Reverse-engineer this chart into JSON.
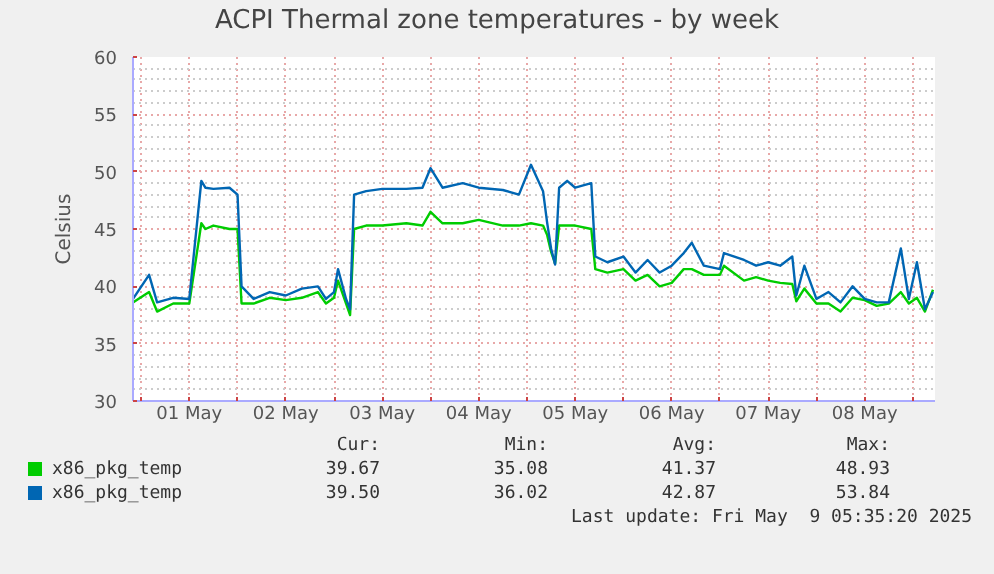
{
  "chart_data": {
    "type": "line",
    "title": "ACPI Thermal zone temperatures - by week",
    "ylabel": "Celsius",
    "x": [
      "2025-04-30T22:00",
      "2025-05-01T02:00",
      "2025-05-01T04:00",
      "2025-05-01T08:00",
      "2025-05-01T12:00",
      "2025-05-01T15:00",
      "2025-05-01T16:00",
      "2025-05-01T18:00",
      "2025-05-01T22:00",
      "2025-05-02T00:00",
      "2025-05-02T01:00",
      "2025-05-02T04:00",
      "2025-05-02T08:00",
      "2025-05-02T12:00",
      "2025-05-02T16:00",
      "2025-05-02T20:00",
      "2025-05-02T22:00",
      "2025-05-03T00:00",
      "2025-05-03T01:00",
      "2025-05-03T03:00",
      "2025-05-03T04:00",
      "2025-05-03T05:00",
      "2025-05-03T08:00",
      "2025-05-03T12:00",
      "2025-05-03T18:00",
      "2025-05-03T22:00",
      "2025-05-04T00:00",
      "2025-05-04T03:00",
      "2025-05-04T08:00",
      "2025-05-04T12:00",
      "2025-05-04T18:00",
      "2025-05-04T22:00",
      "2025-05-05T01:00",
      "2025-05-05T04:00",
      "2025-05-05T05:00",
      "2025-05-05T06:00",
      "2025-05-05T07:00",
      "2025-05-05T08:00",
      "2025-05-05T10:00",
      "2025-05-05T12:00",
      "2025-05-05T16:00",
      "2025-05-05T17:00",
      "2025-05-05T20:00",
      "2025-05-06T00:00",
      "2025-05-06T03:00",
      "2025-05-06T06:00",
      "2025-05-06T09:00",
      "2025-05-06T12:00",
      "2025-05-06T15:00",
      "2025-05-06T17:00",
      "2025-05-06T20:00",
      "2025-05-07T00:00",
      "2025-05-07T01:00",
      "2025-05-07T06:00",
      "2025-05-07T09:00",
      "2025-05-07T12:00",
      "2025-05-07T15:00",
      "2025-05-07T18:00",
      "2025-05-07T19:00",
      "2025-05-07T21:00",
      "2025-05-08T00:00",
      "2025-05-08T03:00",
      "2025-05-08T06:00",
      "2025-05-08T09:00",
      "2025-05-08T12:00",
      "2025-05-08T15:00",
      "2025-05-08T18:00",
      "2025-05-08T21:00",
      "2025-05-08T23:00",
      "2025-05-09T01:00",
      "2025-05-09T03:00",
      "2025-05-09T05:00"
    ],
    "series": [
      {
        "name": "x86_pkg_temp",
        "color": "#00cc00",
        "values": [
          38.6,
          39.5,
          37.8,
          38.5,
          38.5,
          45.5,
          45.0,
          45.3,
          45.0,
          45.0,
          38.5,
          38.5,
          39,
          38.8,
          39,
          39.5,
          38.5,
          39,
          40.5,
          38.5,
          37.5,
          45,
          45.3,
          45.3,
          45.5,
          45.3,
          46.5,
          45.5,
          45.5,
          45.8,
          45.3,
          45.3,
          45.5,
          45.3,
          44.5,
          43,
          42,
          45.3,
          45.3,
          45.3,
          45,
          41.5,
          41.2,
          41.5,
          40.5,
          41,
          40,
          40.3,
          41.5,
          41.5,
          41,
          41,
          41.8,
          40.5,
          40.8,
          40.5,
          40.3,
          40.2,
          38.7,
          39.8,
          38.5,
          38.5,
          37.8,
          39,
          38.8,
          38.3,
          38.5,
          39.5,
          38.5,
          39,
          37.8,
          39.7
        ]
      },
      {
        "name": "x86_pkg_temp",
        "color": "#0066b3",
        "values": [
          38.9,
          41,
          38.6,
          39,
          38.9,
          49.2,
          48.6,
          48.5,
          48.6,
          48,
          40,
          38.9,
          39.5,
          39.2,
          39.8,
          40,
          38.9,
          39.5,
          41.5,
          38.9,
          38,
          48,
          48.3,
          48.5,
          48.5,
          48.6,
          50.3,
          48.6,
          49,
          48.6,
          48.4,
          48,
          50.6,
          48.3,
          45.6,
          43.3,
          41.9,
          48.6,
          49.2,
          48.6,
          49,
          42.6,
          42.1,
          42.6,
          41.2,
          42.3,
          41.2,
          41.8,
          42.9,
          43.8,
          41.8,
          41.5,
          42.9,
          42.3,
          41.8,
          42.1,
          41.8,
          42.6,
          39.2,
          41.8,
          38.9,
          39.5,
          38.6,
          40,
          38.9,
          38.6,
          38.6,
          43.3,
          38.9,
          42.1,
          38,
          39.5
        ]
      }
    ],
    "xlim": [
      "2025-04-30T22:00",
      "2025-05-09T05:30"
    ],
    "xticks": [
      {
        "value": "2025-05-01T00:00",
        "label": null
      },
      {
        "value": "2025-05-01T12:00",
        "label": "01 May"
      },
      {
        "value": "2025-05-02T00:00",
        "label": null
      },
      {
        "value": "2025-05-02T12:00",
        "label": "02 May"
      },
      {
        "value": "2025-05-03T00:00",
        "label": null
      },
      {
        "value": "2025-05-03T12:00",
        "label": "03 May"
      },
      {
        "value": "2025-05-04T00:00",
        "label": null
      },
      {
        "value": "2025-05-04T12:00",
        "label": "04 May"
      },
      {
        "value": "2025-05-05T00:00",
        "label": null
      },
      {
        "value": "2025-05-05T12:00",
        "label": "05 May"
      },
      {
        "value": "2025-05-06T00:00",
        "label": null
      },
      {
        "value": "2025-05-06T12:00",
        "label": "06 May"
      },
      {
        "value": "2025-05-07T00:00",
        "label": null
      },
      {
        "value": "2025-05-07T12:00",
        "label": "07 May"
      },
      {
        "value": "2025-05-08T00:00",
        "label": null
      },
      {
        "value": "2025-05-08T12:00",
        "label": "08 May"
      },
      {
        "value": "2025-05-09T00:00",
        "label": null
      }
    ],
    "ylim": [
      30,
      60
    ],
    "yticks": [
      30,
      35,
      40,
      45,
      50,
      55,
      60
    ],
    "grid": true,
    "legend": "bottom left",
    "marker": "none",
    "line_style": "solid",
    "annotations": [
      "Cur:",
      "Min:",
      "Avg:",
      "Max:",
      "39.67",
      "35.08",
      "41.37",
      "48.93",
      "39.50",
      "36.02",
      "42.87",
      "53.84",
      "Last update: Fri May  9 05:35:20 2025"
    ]
  }
}
